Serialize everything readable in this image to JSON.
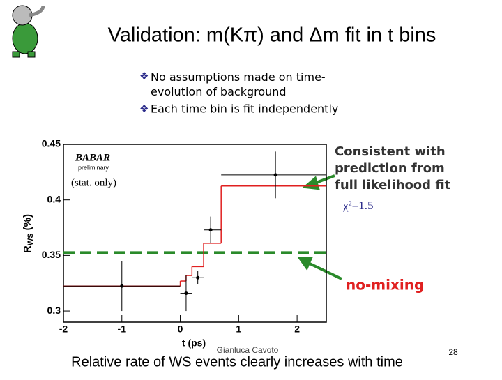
{
  "slide": {
    "title": "Validation: m(Kπ) and Δm fit in t bins",
    "bullets": [
      "No assumptions made on time-evolution of background",
      "Each time bin is fit independently"
    ],
    "author": "Gianluca Cavoto",
    "page": "28",
    "conclusion": "Relative rate of WS events clearly increases with time",
    "callout_fit": "Consistent with prediction from full likelihood fit",
    "chi2": "χ²=1.5",
    "callout_nomix": "no-mixing"
  },
  "chart_data": {
    "type": "errorbar",
    "logo": "BABAR",
    "logo_note": "preliminary",
    "stat_note": "(stat. only)",
    "x_label": "t (ps)",
    "y_label": "R",
    "y_label_sub": "WS",
    "y_label_unit": "(%)",
    "x": [
      -1,
      0.1,
      0.3,
      0.52,
      1.63
    ],
    "x_low": [
      -2,
      0,
      0.2,
      0.4,
      0.7
    ],
    "x_high": [
      0,
      0.2,
      0.4,
      0.7,
      2.5
    ],
    "values": [
      0.3225,
      0.316,
      0.33,
      0.373,
      0.4225
    ],
    "errors": [
      0.0225,
      0.016,
      0.006,
      0.012,
      0.021
    ],
    "color": "#000000",
    "fit": {
      "edges": [
        -2,
        0,
        0.1,
        0.2,
        0.4,
        0.7,
        2.5
      ],
      "values": [
        0.3225,
        0.327,
        0.332,
        0.34,
        0.361,
        0.4125
      ],
      "color": "#e02020"
    },
    "no_mixing_level": 0.3525,
    "no_mixing_color": "#2a8a2a",
    "xlim": [
      -2,
      2.5
    ],
    "ylim": [
      0.29,
      0.45
    ],
    "xticks": [
      -2,
      -1,
      0,
      1,
      2
    ],
    "yticks": [
      0.3,
      0.35,
      0.4,
      0.45
    ]
  }
}
